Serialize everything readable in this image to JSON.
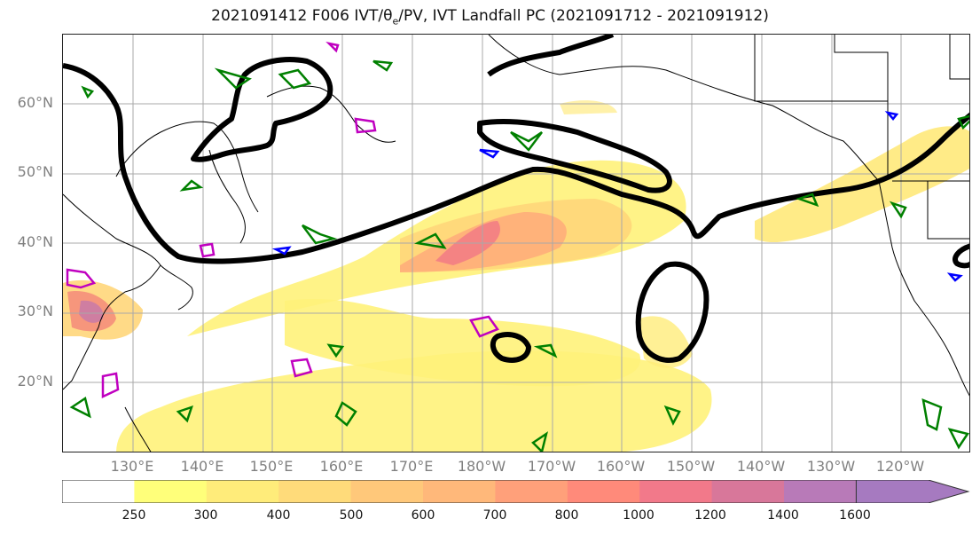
{
  "title": {
    "prefix": "2021091412 F006 IVT/θ",
    "sub": "e",
    "suffix": "/PV, IVT Landfall PC (2021091712 - 2021091912)"
  },
  "map": {
    "lat_labels": [
      "60°N",
      "50°N",
      "40°N",
      "30°N",
      "20°N"
    ],
    "lon_labels": [
      "130°E",
      "140°E",
      "150°E",
      "160°E",
      "170°E",
      "180°W",
      "170°W",
      "160°W",
      "150°W",
      "140°W",
      "130°W",
      "120°W"
    ],
    "layers": [
      {
        "name": "IVT filled contours",
        "color": "#ffd24d"
      },
      {
        "name": "Landfall PC",
        "color": "#000000"
      },
      {
        "name": "theta-e",
        "color": "#008000"
      },
      {
        "name": "PV",
        "color": "#c000c0"
      },
      {
        "name": "PV negative",
        "color": "#0000ff"
      }
    ]
  },
  "colorbar": {
    "ticks": [
      "250",
      "300",
      "400",
      "500",
      "600",
      "700",
      "800",
      "1000",
      "1200",
      "1400",
      "1600"
    ],
    "colors": [
      "#ffffff",
      "#ffff7a",
      "#ffec7a",
      "#ffdb7a",
      "#ffc87a",
      "#ffb87a",
      "#ffa07a",
      "#ff8a7a",
      "#f2798a",
      "#d8779a",
      "#b87ab8",
      "#a67ac0"
    ]
  }
}
